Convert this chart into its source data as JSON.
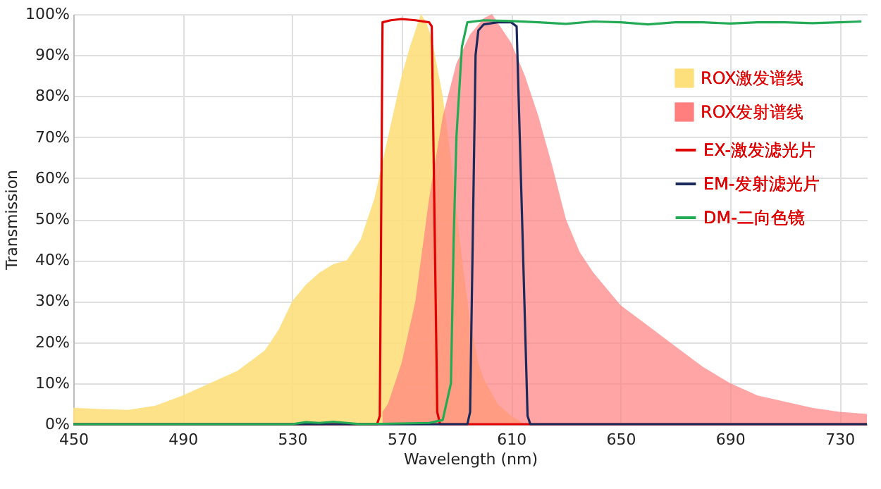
{
  "chart_data": {
    "type": "line",
    "xlabel": "Wavelength (nm)",
    "ylabel": "Transmission",
    "xlim": [
      450,
      740
    ],
    "xticks": [
      450,
      490,
      530,
      570,
      610,
      650,
      690,
      730
    ],
    "ylim": [
      0,
      100
    ],
    "yticks": [
      {
        "value": 0,
        "label": "0%"
      },
      {
        "value": 10,
        "label": "10%"
      },
      {
        "value": 20,
        "label": "20%"
      },
      {
        "value": 30,
        "label": "30%"
      },
      {
        "value": 40,
        "label": "40%"
      },
      {
        "value": 50,
        "label": "50%"
      },
      {
        "value": 60,
        "label": "60%"
      },
      {
        "value": 70,
        "label": "70%"
      },
      {
        "value": 80,
        "label": "80%"
      },
      {
        "value": 90,
        "label": "90%"
      },
      {
        "value": 100,
        "label": "100%"
      }
    ],
    "grid": true,
    "legend": "top right",
    "series": [
      {
        "name": "ROX激发谱线",
        "type": "area",
        "color": "#fddf7c",
        "x": [
          450,
          460,
          470,
          480,
          490,
          500,
          510,
          520,
          525,
          530,
          535,
          540,
          545,
          550,
          555,
          560,
          565,
          570,
          573,
          575,
          577,
          579,
          581,
          583,
          585,
          588,
          590,
          593,
          595,
          598,
          600,
          605,
          610,
          615
        ],
        "values": [
          4,
          3.7,
          3.5,
          4.5,
          7,
          10,
          13,
          18,
          23,
          30,
          34,
          37,
          39,
          40,
          45,
          55,
          70,
          85,
          92,
          96,
          100,
          98,
          94,
          87,
          80,
          65,
          52,
          35,
          25,
          15,
          11,
          5,
          2,
          0
        ]
      },
      {
        "name": "ROX发射谱线",
        "type": "area",
        "color": "#ff7f7f",
        "x": [
          563,
          565,
          570,
          575,
          580,
          585,
          590,
          595,
          600,
          603,
          605,
          610,
          615,
          620,
          625,
          630,
          635,
          640,
          650,
          660,
          670,
          680,
          690,
          700,
          710,
          720,
          730,
          740
        ],
        "values": [
          3,
          5,
          15,
          30,
          55,
          75,
          88,
          95,
          99,
          100,
          98,
          93,
          85,
          75,
          63,
          50,
          42,
          37,
          29,
          24,
          19,
          14,
          10,
          7,
          5.5,
          4,
          3,
          2.5
        ]
      },
      {
        "name": "EX-激发滤光片",
        "type": "line",
        "color": "#e00000",
        "x": [
          450,
          561,
          562,
          563,
          566,
          570,
          575,
          580,
          581,
          582,
          583,
          584,
          740
        ],
        "values": [
          0,
          0,
          2,
          98,
          98.5,
          98.8,
          98.5,
          98,
          97,
          50,
          3,
          0,
          0
        ]
      },
      {
        "name": "EM-发射滤光片",
        "type": "line",
        "color": "#1a2a5a",
        "x": [
          450,
          594,
          595,
          597,
          598,
          600,
          605,
          610,
          612,
          614,
          616,
          617,
          740
        ],
        "values": [
          0,
          0,
          3,
          90,
          96,
          97.5,
          98,
          98,
          97,
          50,
          2,
          0,
          0
        ]
      },
      {
        "name": "DM-二向色镜",
        "type": "line",
        "color": "#22aa55",
        "x": [
          450,
          530,
          535,
          540,
          545,
          550,
          555,
          580,
          585,
          588,
          589,
          590,
          592,
          594,
          600,
          610,
          620,
          630,
          640,
          650,
          660,
          670,
          680,
          690,
          700,
          710,
          720,
          730,
          738
        ],
        "values": [
          0,
          0,
          0.5,
          0.3,
          0.6,
          0.3,
          0,
          0.3,
          1,
          10,
          45,
          70,
          92,
          98,
          98.5,
          98.3,
          98,
          97.6,
          98.2,
          98,
          97.5,
          98,
          98,
          97.7,
          98,
          98,
          97.8,
          98,
          98.2
        ]
      }
    ]
  }
}
